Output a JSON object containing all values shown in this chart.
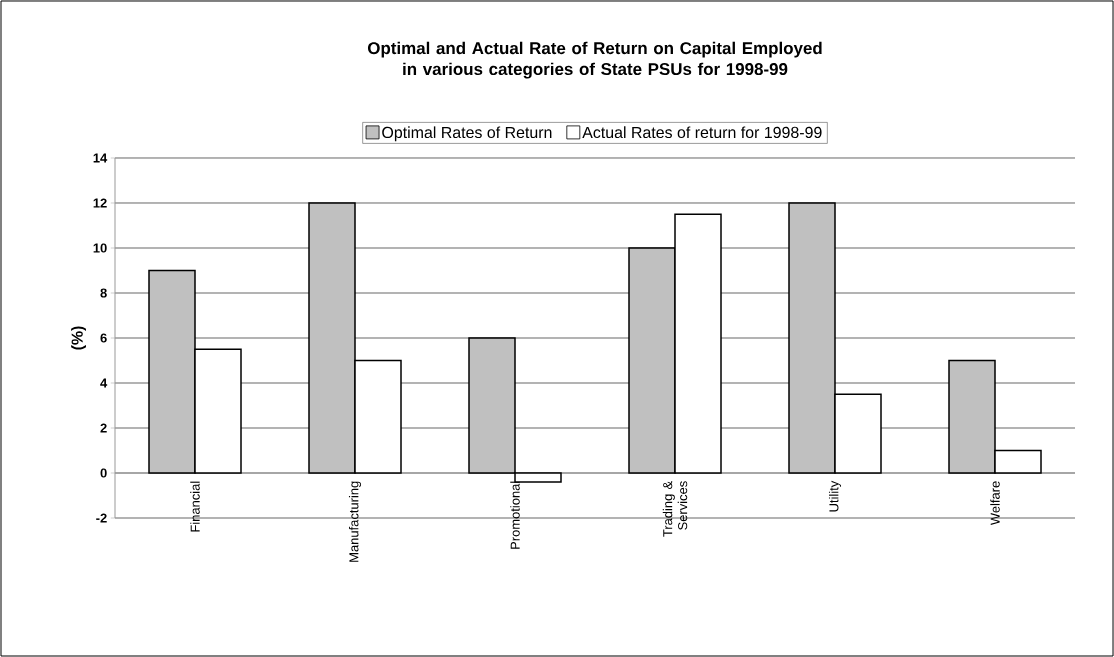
{
  "chart_data": {
    "type": "bar",
    "title": "Optimal and Actual Rate of Return on Capital Employed in various categories of State PSUs for 1998-99",
    "categories": [
      "Financial",
      "Manufacturing",
      "Promotional",
      "Trading & Services",
      "Utility",
      "Welfare"
    ],
    "series": [
      {
        "name": "Optimal Rates of Return",
        "color": "#c0c0c0",
        "values": [
          9,
          12,
          6,
          10,
          12,
          5
        ]
      },
      {
        "name": "Actual Rates of return for 1998-99",
        "color": "#ffffff",
        "values": [
          5.5,
          5,
          -0.4,
          11.5,
          3.5,
          1
        ]
      }
    ],
    "ylabel": "(%)",
    "ylim": [
      -2,
      14
    ],
    "yticks": [
      -2,
      0,
      2,
      4,
      6,
      8,
      10,
      12,
      14
    ],
    "grid": "y",
    "legend": "top"
  }
}
